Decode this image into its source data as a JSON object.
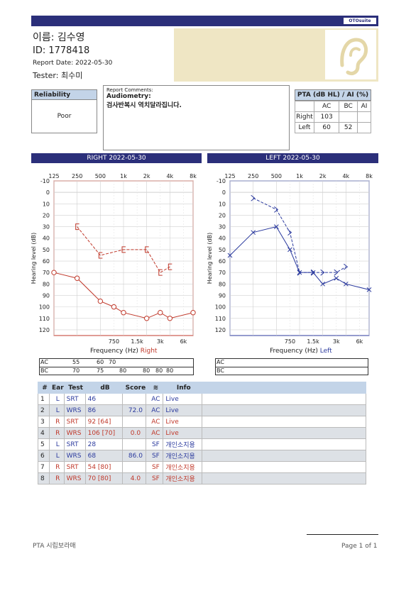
{
  "header": {
    "logo": "OTOsuite"
  },
  "patient": {
    "name": "이름: 김수영",
    "id": "ID: 1778418",
    "report_date": "Report Date: 2022-05-30",
    "tester": "Tester: 최수미"
  },
  "reliability": {
    "title": "Reliability",
    "value": "Poor"
  },
  "comments": {
    "label": "Report Comments:",
    "line1": "Audiometry:",
    "line2": "검사반복시 역치달라집니다."
  },
  "pta": {
    "title": "PTA (dB HL) / AI (%)",
    "cols": [
      "AC",
      "BC",
      "AI"
    ],
    "rows": [
      {
        "ear": "Right",
        "ac": "103",
        "bc": "",
        "ai": ""
      },
      {
        "ear": "Left",
        "ac": "60",
        "bc": "52",
        "ai": ""
      }
    ]
  },
  "right_panel": {
    "title": "RIGHT  2022-05-30",
    "xlabel": "Frequency (Hz)",
    "ear": "Right",
    "color": "#c0392b"
  },
  "left_panel": {
    "title": "LEFT  2022-05-30",
    "xlabel": "Frequency (Hz)",
    "ear": "Left",
    "color": "#2b3a9e"
  },
  "chart_data": [
    {
      "type": "line",
      "ylabel": "Hearing level (dB)",
      "x_top": [
        "125",
        "250",
        "500",
        "1k",
        "2k",
        "4k",
        "8k"
      ],
      "x_bottom": [
        "750",
        "1.5k",
        "3k",
        "6k"
      ],
      "y_ticks": [
        -10,
        0,
        10,
        20,
        30,
        40,
        50,
        60,
        70,
        80,
        90,
        100,
        110,
        120
      ],
      "ylim": [
        -10,
        125
      ],
      "series": [
        {
          "kind": "AC",
          "points": [
            [
              125,
              70
            ],
            [
              250,
              75
            ],
            [
              500,
              95
            ],
            [
              750,
              100
            ],
            [
              1000,
              105
            ],
            [
              2000,
              110
            ],
            [
              3000,
              105
            ],
            [
              4000,
              110
            ],
            [
              8000,
              105
            ]
          ]
        },
        {
          "kind": "BC",
          "points": [
            [
              250,
              30
            ],
            [
              500,
              55
            ],
            [
              1000,
              50
            ],
            [
              2000,
              50
            ],
            [
              3000,
              70
            ],
            [
              4000,
              65
            ]
          ]
        }
      ],
      "ac_row": [
        "55",
        "60",
        "70"
      ],
      "bc_row": [
        "70",
        "75",
        "80",
        "80",
        "80",
        "80"
      ]
    },
    {
      "type": "line",
      "ylabel": "Hearing level (dB)",
      "x_top": [
        "125",
        "250",
        "500",
        "1k",
        "2k",
        "4k",
        "8k"
      ],
      "x_bottom": [
        "750",
        "1.5k",
        "3k",
        "6k"
      ],
      "y_ticks": [
        -10,
        0,
        10,
        20,
        30,
        40,
        50,
        60,
        70,
        80,
        90,
        100,
        110,
        120
      ],
      "ylim": [
        -10,
        125
      ],
      "series": [
        {
          "kind": "AC",
          "points": [
            [
              125,
              55
            ],
            [
              250,
              35
            ],
            [
              500,
              30
            ],
            [
              750,
              50
            ],
            [
              1000,
              70
            ],
            [
              1500,
              70
            ],
            [
              2000,
              80
            ],
            [
              3000,
              75
            ],
            [
              4000,
              80
            ],
            [
              8000,
              85
            ]
          ]
        },
        {
          "kind": "BC",
          "points": [
            [
              250,
              5
            ],
            [
              500,
              15
            ],
            [
              750,
              35
            ],
            [
              1000,
              70
            ],
            [
              1500,
              70
            ],
            [
              2000,
              70
            ],
            [
              3000,
              70
            ],
            [
              4000,
              65
            ]
          ]
        }
      ]
    }
  ],
  "speech": {
    "headers": [
      "#",
      "Ear",
      "Test",
      "dB",
      "Score",
      "",
      "Info"
    ],
    "rows": [
      {
        "n": "1",
        "ear": "L",
        "test": "SRT",
        "db": "46",
        "score": "",
        "mode": "AC",
        "info": "Live"
      },
      {
        "n": "2",
        "ear": "L",
        "test": "WRS",
        "db": "86",
        "score": "72.0",
        "mode": "AC",
        "info": "Live"
      },
      {
        "n": "3",
        "ear": "R",
        "test": "SRT",
        "db": "92  [64]",
        "score": "",
        "mode": "AC",
        "info": "Live"
      },
      {
        "n": "4",
        "ear": "R",
        "test": "WRS",
        "db": "106 [70]",
        "score": "0.0",
        "mode": "AC",
        "info": "Live"
      },
      {
        "n": "5",
        "ear": "L",
        "test": "SRT",
        "db": "28",
        "score": "",
        "mode": "SF",
        "info": "개인소지용"
      },
      {
        "n": "6",
        "ear": "L",
        "test": "WRS",
        "db": "68",
        "score": "86.0",
        "mode": "SF",
        "info": "개인소지용"
      },
      {
        "n": "7",
        "ear": "R",
        "test": "SRT",
        "db": "54  [80]",
        "score": "",
        "mode": "SF",
        "info": "개인소지용"
      },
      {
        "n": "8",
        "ear": "R",
        "test": "WRS",
        "db": "70  [80]",
        "score": "4.0",
        "mode": "SF",
        "info": "개인소지용"
      }
    ]
  },
  "footer": {
    "left": "PTA 시립보라매",
    "right": "Page 1 of 1"
  }
}
